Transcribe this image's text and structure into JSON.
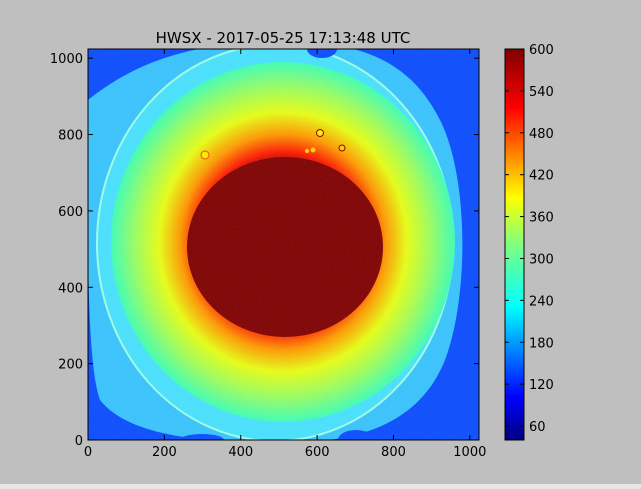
{
  "figure": {
    "background": "#bfbfbf"
  },
  "chart_data": {
    "type": "heatmap",
    "title": "HWSX - 2017-05-25 17:13:48 UTC",
    "xlabel": "",
    "ylabel": "",
    "xlim": [
      0,
      1024
    ],
    "ylim": [
      0,
      1024
    ],
    "x_ticks": [
      0,
      200,
      400,
      600,
      800,
      1000
    ],
    "y_ticks": [
      0,
      200,
      400,
      600,
      800,
      1000
    ],
    "colormap": "jet",
    "color_range": [
      40,
      600
    ],
    "colorbar_ticks": [
      60,
      120,
      180,
      240,
      300,
      360,
      420,
      480,
      540,
      600
    ],
    "grid": false,
    "image_features": {
      "saturated_core_center": [
        510,
        490
      ],
      "saturated_core_radius": 200,
      "outer_aperture_center": [
        500,
        500
      ],
      "outer_aperture_radius_x": 460,
      "outer_aperture_radius_y": 510,
      "core_value": 600,
      "edge_value": 240,
      "background_value": 60
    }
  }
}
